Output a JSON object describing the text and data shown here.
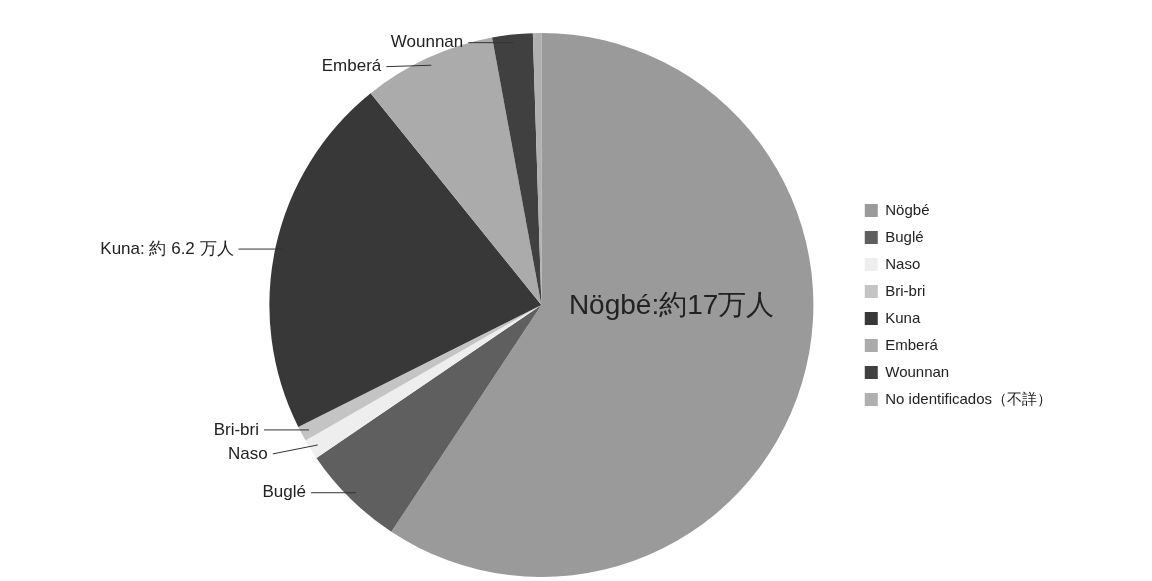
{
  "chart_data": {
    "type": "pie",
    "categories": [
      "Nögbé",
      "Buglé",
      "Naso",
      "Bri-bri",
      "Kuna",
      "Emberá",
      "Wounnan",
      "No identificados（不詳）"
    ],
    "values": [
      59.3,
      6.2,
      1.2,
      0.9,
      21.6,
      7.9,
      2.4,
      0.5
    ],
    "colors": [
      "#9a9a9a",
      "#5f5f5f",
      "#eeeeee",
      "#c4c4c4",
      "#383838",
      "#ababab",
      "#404040",
      "#b0b0b0"
    ],
    "value_labels": [
      "Nögbé:約17万人",
      "Buglé",
      "Naso",
      "Bri-bri",
      "Kuna: 約 6.2 万人",
      "Emberá",
      "Wounnan",
      null
    ],
    "legend": "right"
  }
}
